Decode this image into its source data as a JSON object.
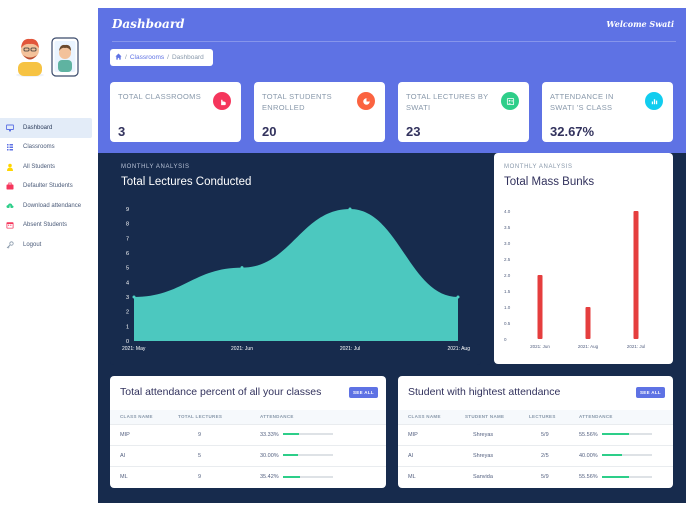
{
  "header": {
    "title": "Dashboard",
    "welcome": "Welcome Swati"
  },
  "breadcrumb": {
    "home_icon": "home-icon",
    "classrooms": "Classrooms",
    "separator": "/",
    "current": "Dashboard"
  },
  "sidebar": {
    "items": [
      {
        "label": "Dashboard",
        "icon": "monitor-icon",
        "active": true
      },
      {
        "label": "Classrooms",
        "icon": "list-icon"
      },
      {
        "label": "All Students",
        "icon": "person-icon"
      },
      {
        "label": "Defaulter Students",
        "icon": "briefcase-icon"
      },
      {
        "label": "Download attendance",
        "icon": "cloud-download-icon"
      },
      {
        "label": "Absent Students",
        "icon": "calendar-icon"
      },
      {
        "label": "Logout",
        "icon": "key-icon"
      }
    ]
  },
  "stats": [
    {
      "label": "TOTAL CLASSROOMS",
      "value": "3",
      "icon": "hand-pointer-icon",
      "color": "#f5365c"
    },
    {
      "label": "TOTAL STUDENTS ENROLLED",
      "value": "20",
      "icon": "pie-chart-icon",
      "color": "#fb6340"
    },
    {
      "label": "TOTAL LECTURES BY SWATI",
      "value": "23",
      "icon": "people-icon",
      "color": "#2dce89"
    },
    {
      "label": "ATTENDANCE IN SWATI 'S CLASS",
      "value": "32.67%",
      "icon": "bar-chart-icon",
      "color": "#11cdef"
    }
  ],
  "lectures_panel": {
    "tag": "MONTHLY ANALYSIS",
    "title": "Total Lectures Conducted"
  },
  "bunks_panel": {
    "tag": "MONTHLY ANALYSIS",
    "title": "Total Mass Bunks"
  },
  "chart_data": [
    {
      "type": "area",
      "title": "Total Lectures Conducted",
      "x": [
        "2021: May",
        "2021: Jun",
        "2021: Jul",
        "2021: Aug"
      ],
      "values": [
        3,
        5,
        9,
        3
      ],
      "y_ticks": [
        "0",
        "1",
        "2",
        "3",
        "4",
        "5",
        "6",
        "7",
        "8",
        "9"
      ],
      "ylim": [
        0,
        9
      ],
      "color": "#4fd1c5"
    },
    {
      "type": "bar",
      "title": "Total Mass Bunks",
      "categories": [
        "2021: Jun",
        "2021: Aug",
        "2021: Jul"
      ],
      "values": [
        2,
        1,
        4
      ],
      "y_ticks": [
        "0",
        "0.5",
        "1.0",
        "1.5",
        "2.0",
        "2.5",
        "3.0",
        "3.5",
        "4.0"
      ],
      "ylim": [
        0,
        4
      ],
      "color": "#e53e3e"
    }
  ],
  "attendance_table": {
    "title": "Total attendance percent of all your classes",
    "see_all": "SEE ALL",
    "columns": [
      "CLASS NAME",
      "TOTAL LECTURES",
      "ATTENDANCE"
    ],
    "rows": [
      {
        "class": "MIP",
        "lectures": "9",
        "attendance": "33.33%",
        "pct": 33.33
      },
      {
        "class": "AI",
        "lectures": "5",
        "attendance": "30.00%",
        "pct": 30.0
      },
      {
        "class": "ML",
        "lectures": "9",
        "attendance": "35.42%",
        "pct": 35.42
      }
    ]
  },
  "highest_table": {
    "title": "Student with hightest attendance",
    "see_all": "SEE ALL",
    "columns": [
      "CLASS NAME",
      "STUDENT NAME",
      "LECTURES",
      "ATTENDANCE"
    ],
    "rows": [
      {
        "class": "MIP",
        "student": "Shreyas",
        "lectures": "5/9",
        "attendance": "55.56%",
        "pct": 55.56
      },
      {
        "class": "AI",
        "student": "Shreyas",
        "lectures": "2/5",
        "attendance": "40.00%",
        "pct": 40.0
      },
      {
        "class": "ML",
        "student": "Sanvida",
        "lectures": "5/9",
        "attendance": "55.56%",
        "pct": 55.56
      }
    ]
  }
}
